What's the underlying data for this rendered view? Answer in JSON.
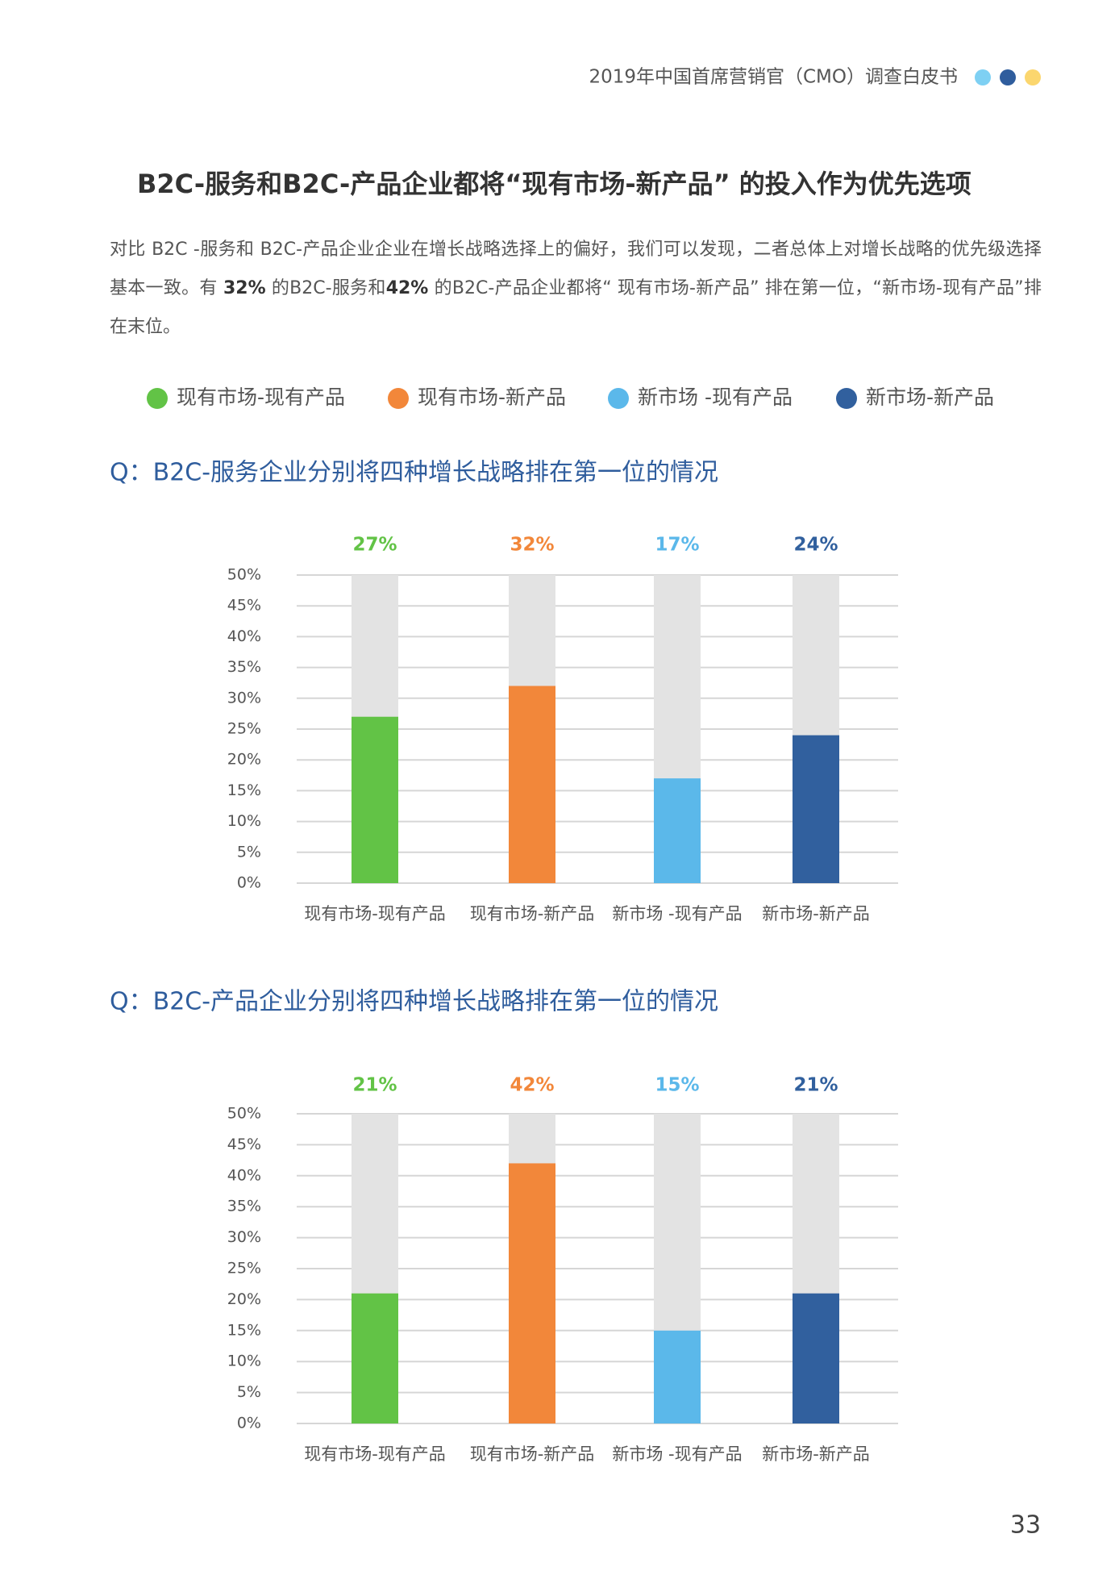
{
  "header": {
    "text": "2019年中国首席营销官（CMO）调查白皮书",
    "dots": [
      "#7ed0f3",
      "#2f5d9d",
      "#fbd66e"
    ]
  },
  "title": "B2C-服务和B2C-产品企业都将“现有市场-新产品” 的投入作为优先选项",
  "paragraph": [
    {
      "text": "对比 B2C -服务和 B2C-产品企业企业在增长战略选择上的偏好，我们可以发现，二者总体上对增长战略的优先级选择基本一致。有 ",
      "bold": false
    },
    {
      "text": "32%",
      "bold": true
    },
    {
      "text": " 的B2C-服务和",
      "bold": false
    },
    {
      "text": "42%",
      "bold": true
    },
    {
      "text": " 的B2C-产品企业都将“ 现有市场-新产品” 排在第一位，“新市场-现有产品”排在末位。",
      "bold": false
    }
  ],
  "legend": [
    {
      "name": "现有市场-现有产品",
      "color": "#62c346"
    },
    {
      "name": "现有市场-新产品",
      "color": "#f2873a"
    },
    {
      "name": "新市场 -现有产品",
      "color": "#5bb8ea"
    },
    {
      "name": "新市场-新产品",
      "color": "#31609e"
    }
  ],
  "chart_data": [
    {
      "type": "bar",
      "title": "Q：B2C-服务企业分别将四种增长战略排在第一位的情况",
      "categories": [
        "现有市场-现有产品",
        "现有市场-新产品",
        "新市场 -现有产品",
        "新市场-新产品"
      ],
      "values": [
        27,
        32,
        17,
        24
      ],
      "value_labels": [
        "27%",
        "32%",
        "17%",
        "24%"
      ],
      "colors": [
        "#62c346",
        "#f2873a",
        "#5bb8ea",
        "#31609e"
      ],
      "track_color": "#e3e3e3",
      "ylim": [
        0,
        50
      ],
      "yticks": [
        {
          "value": 0,
          "label": "0%"
        },
        {
          "value": 5,
          "label": "5%"
        },
        {
          "value": 10,
          "label": "10%"
        },
        {
          "value": 15,
          "label": "15%"
        },
        {
          "value": 20,
          "label": "20%"
        },
        {
          "value": 25,
          "label": "25%"
        },
        {
          "value": 30,
          "label": "30%"
        },
        {
          "value": 35,
          "label": "35%"
        },
        {
          "value": 40,
          "label": "40%"
        },
        {
          "value": 45,
          "label": "45%"
        },
        {
          "value": 50,
          "label": "50%"
        }
      ],
      "grid": true
    },
    {
      "type": "bar",
      "title": "Q：B2C-产品企业分别将四种增长战略排在第一位的情况",
      "categories": [
        "现有市场-现有产品",
        "现有市场-新产品",
        "新市场 -现有产品",
        "新市场-新产品"
      ],
      "values": [
        21,
        42,
        15,
        21
      ],
      "value_labels": [
        "21%",
        "42%",
        "15%",
        "21%"
      ],
      "colors": [
        "#62c346",
        "#f2873a",
        "#5bb8ea",
        "#31609e"
      ],
      "track_color": "#e3e3e3",
      "ylim": [
        0,
        50
      ],
      "yticks": [
        {
          "value": 0,
          "label": "0%"
        },
        {
          "value": 5,
          "label": "5%"
        },
        {
          "value": 10,
          "label": "10%"
        },
        {
          "value": 15,
          "label": "15%"
        },
        {
          "value": 20,
          "label": "20%"
        },
        {
          "value": 25,
          "label": "25%"
        },
        {
          "value": 30,
          "label": "30%"
        },
        {
          "value": 35,
          "label": "35%"
        },
        {
          "value": 40,
          "label": "40%"
        },
        {
          "value": 45,
          "label": "45%"
        },
        {
          "value": 50,
          "label": "50%"
        }
      ],
      "grid": true
    }
  ],
  "page_number": "33"
}
